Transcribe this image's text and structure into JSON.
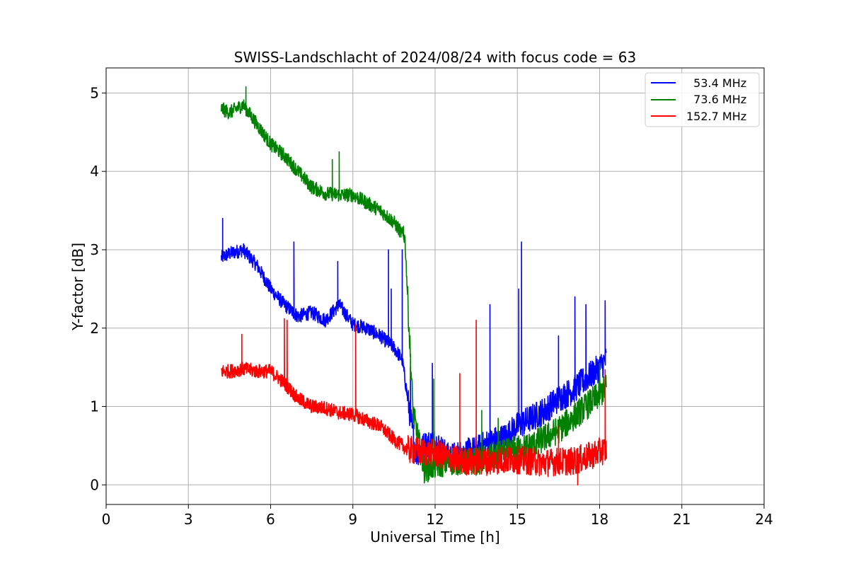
{
  "chart_data": {
    "type": "line",
    "title": "SWISS-Landschlacht of 2024/08/24 with focus code = 63",
    "xlabel": "Universal Time [h]",
    "ylabel": "Y-factor [dB]",
    "xlim": [
      0,
      24
    ],
    "ylim": [
      -0.25,
      5.32
    ],
    "xticks": [
      0,
      3,
      6,
      9,
      12,
      15,
      18,
      21,
      24
    ],
    "yticks": [
      0,
      1,
      2,
      3,
      4,
      5
    ],
    "grid": true,
    "legend_position": "top-right",
    "series": [
      {
        "name": "  53.4 MHz",
        "color": "#0000ff",
        "x": [
          4.2,
          4.5,
          5.0,
          5.5,
          6.0,
          6.5,
          7.0,
          7.5,
          8.0,
          8.5,
          9.0,
          9.5,
          10.0,
          10.5,
          10.8,
          11.0,
          11.3,
          11.6,
          12.0,
          12.5,
          13.0,
          13.5,
          14.0,
          14.5,
          15.0,
          15.5,
          16.0,
          16.5,
          17.0,
          17.5,
          18.0,
          18.25
        ],
        "y": [
          2.9,
          2.95,
          3.0,
          2.8,
          2.5,
          2.3,
          2.15,
          2.2,
          2.1,
          2.3,
          2.05,
          2.0,
          1.9,
          1.75,
          1.6,
          1.1,
          0.4,
          0.5,
          0.55,
          0.35,
          0.4,
          0.45,
          0.55,
          0.6,
          0.75,
          0.85,
          0.95,
          1.1,
          1.2,
          1.35,
          1.5,
          1.6
        ],
        "spikes": [
          [
            4.25,
            3.4
          ],
          [
            6.85,
            3.1
          ],
          [
            8.45,
            2.85
          ],
          [
            9.1,
            2.0
          ],
          [
            10.3,
            3.0
          ],
          [
            10.4,
            2.5
          ],
          [
            10.8,
            3.0
          ],
          [
            11.1,
            1.5
          ],
          [
            11.9,
            1.55
          ],
          [
            14.0,
            2.3
          ],
          [
            15.05,
            2.5
          ],
          [
            15.15,
            3.1
          ],
          [
            16.5,
            1.9
          ],
          [
            17.1,
            2.4
          ],
          [
            17.5,
            2.3
          ],
          [
            18.2,
            2.35
          ]
        ]
      },
      {
        "name": "  73.6 MHz",
        "color": "#008000",
        "x": [
          4.2,
          4.5,
          5.0,
          5.5,
          6.0,
          6.5,
          7.0,
          7.5,
          8.0,
          8.5,
          9.0,
          9.5,
          10.0,
          10.5,
          10.9,
          11.05,
          11.2,
          11.6,
          12.0,
          12.5,
          13.0,
          13.5,
          14.0,
          14.5,
          15.0,
          15.5,
          16.0,
          16.5,
          17.0,
          17.5,
          18.0,
          18.25
        ],
        "y": [
          4.8,
          4.75,
          4.85,
          4.6,
          4.35,
          4.2,
          4.0,
          3.8,
          3.72,
          3.7,
          3.7,
          3.6,
          3.5,
          3.35,
          3.15,
          2.0,
          0.9,
          0.2,
          0.25,
          0.3,
          0.3,
          0.3,
          0.35,
          0.4,
          0.45,
          0.5,
          0.6,
          0.7,
          0.85,
          1.0,
          1.15,
          1.25
        ],
        "spikes": [
          [
            5.1,
            5.08
          ],
          [
            8.5,
            4.25
          ],
          [
            8.25,
            4.15
          ],
          [
            10.85,
            3.3
          ],
          [
            11.1,
            1.45
          ],
          [
            11.95,
            1.35
          ],
          [
            13.7,
            0.95
          ],
          [
            14.3,
            0.85
          ],
          [
            17.6,
            1.15
          ],
          [
            18.0,
            1.55
          ]
        ]
      },
      {
        "name": "152.7 MHz",
        "color": "#ff0000",
        "x": [
          4.2,
          4.5,
          5.0,
          5.5,
          6.0,
          6.5,
          7.0,
          7.5,
          8.0,
          8.5,
          9.0,
          9.5,
          10.0,
          10.5,
          11.0,
          11.5,
          12.0,
          12.5,
          13.0,
          13.5,
          14.0,
          14.5,
          15.0,
          15.5,
          16.0,
          16.5,
          17.0,
          17.5,
          18.0,
          18.25
        ],
        "y": [
          1.45,
          1.45,
          1.48,
          1.45,
          1.45,
          1.3,
          1.1,
          1.0,
          0.98,
          0.92,
          0.9,
          0.82,
          0.75,
          0.58,
          0.45,
          0.42,
          0.4,
          0.35,
          0.3,
          0.3,
          0.3,
          0.32,
          0.32,
          0.3,
          0.28,
          0.3,
          0.3,
          0.35,
          0.42,
          0.45
        ],
        "spikes": [
          [
            4.95,
            1.92
          ],
          [
            6.5,
            2.12
          ],
          [
            6.6,
            2.1
          ],
          [
            9.1,
            2.05
          ],
          [
            12.9,
            1.42
          ],
          [
            13.5,
            2.1
          ],
          [
            16.5,
            0.75
          ],
          [
            17.2,
            0.0
          ],
          [
            18.2,
            1.47
          ]
        ]
      }
    ]
  }
}
